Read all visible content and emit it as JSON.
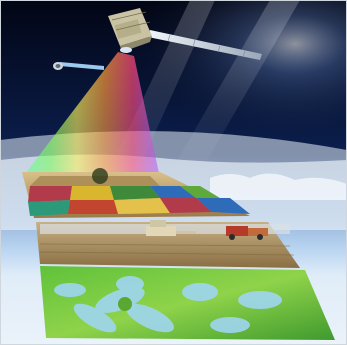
{
  "image": {
    "subject": "",
    "colors": {
      "space_top": "#020514",
      "space_mid": "#0b1f4f",
      "atmosphere": "#7fb2e6",
      "horizon_glow": "#e8f4ff",
      "cloud": "#dfe9f3",
      "field_top": "#c9a36a",
      "crop_mosaic": [
        "#b13a4b",
        "#d8b62d",
        "#3f8a3a",
        "#2e6bb8",
        "#5ea83c",
        "#c2452f",
        "#e3c14a",
        "#2c9a7a"
      ],
      "harvest_field": "#a88a55",
      "leaf_green": "#5fc23a",
      "leaf_dew": "#9fd6f0",
      "solar_panel": "#e9eef5",
      "satellite_body": "#c9c3a3"
    },
    "icons": [
      "satellite-icon",
      "small-satellite-icon"
    ]
  }
}
